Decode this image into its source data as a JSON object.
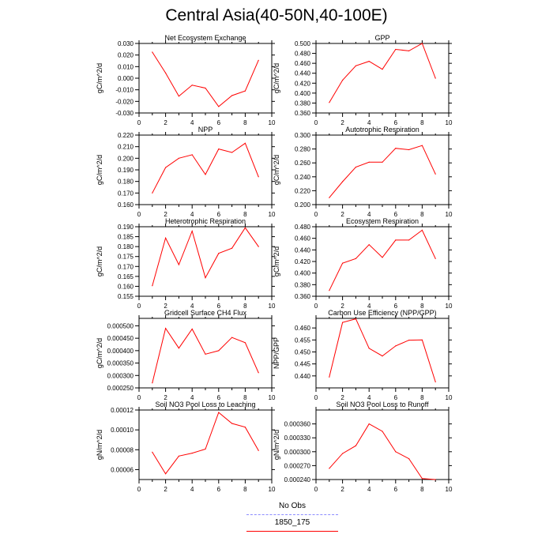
{
  "page": {
    "title": "Central Asia(40-50N,40-100E)"
  },
  "legend": [
    {
      "label": "No Obs",
      "color": "#8c8cff",
      "dash": true
    },
    {
      "label": "1850_175",
      "color": "#ff0000",
      "dash": false
    }
  ],
  "chart_data": [
    {
      "type": "line",
      "title": "Net Ecosystem Exchange",
      "ylabel": "gC/m^2/d",
      "xlim": [
        0,
        10
      ],
      "ylim": [
        -0.03,
        0.03
      ],
      "xticks": [
        "0",
        "2",
        "4",
        "6",
        "8",
        "10"
      ],
      "yticks": [
        "-0.030",
        "-0.020",
        "-0.010",
        "0.000",
        "0.010",
        "0.020",
        "0.030"
      ],
      "x": [
        1,
        2,
        3,
        4,
        5,
        6,
        7,
        8,
        9
      ],
      "series": [
        {
          "name": "1850_175",
          "values": [
            0.0225,
            0.0045,
            -0.0155,
            -0.006,
            -0.0085,
            -0.0245,
            -0.015,
            -0.011,
            0.0155
          ]
        }
      ]
    },
    {
      "type": "line",
      "title": "GPP",
      "ylabel": "gC/m^2/d",
      "xlim": [
        0,
        10
      ],
      "ylim": [
        0.36,
        0.5
      ],
      "xticks": [
        "0",
        "2",
        "4",
        "6",
        "8",
        "10"
      ],
      "yticks": [
        "0.360",
        "0.380",
        "0.400",
        "0.420",
        "0.440",
        "0.460",
        "0.480",
        "0.500"
      ],
      "x": [
        1,
        2,
        3,
        4,
        5,
        6,
        7,
        8,
        9
      ],
      "series": [
        {
          "name": "1850_175",
          "values": [
            0.381,
            0.426,
            0.455,
            0.464,
            0.448,
            0.488,
            0.485,
            0.5,
            0.43
          ]
        }
      ]
    },
    {
      "type": "line",
      "title": "NPP",
      "ylabel": "gC/m^2/d",
      "xlim": [
        0,
        10
      ],
      "ylim": [
        0.16,
        0.22
      ],
      "xticks": [
        "0",
        "2",
        "4",
        "6",
        "8",
        "10"
      ],
      "yticks": [
        "0.160",
        "0.170",
        "0.180",
        "0.190",
        "0.200",
        "0.210",
        "0.220"
      ],
      "x": [
        1,
        2,
        3,
        4,
        5,
        6,
        7,
        8,
        9
      ],
      "series": [
        {
          "name": "1850_175",
          "values": [
            0.17,
            0.192,
            0.2,
            0.203,
            0.186,
            0.208,
            0.205,
            0.213,
            0.184
          ]
        }
      ]
    },
    {
      "type": "line",
      "title": "Autotrophic Respiration",
      "ylabel": "gC/m^2/d",
      "xlim": [
        0,
        10
      ],
      "ylim": [
        0.2,
        0.3
      ],
      "xticks": [
        "0",
        "2",
        "4",
        "6",
        "8",
        "10"
      ],
      "yticks": [
        "0.200",
        "0.220",
        "0.240",
        "0.260",
        "0.280",
        "0.300"
      ],
      "x": [
        1,
        2,
        3,
        4,
        5,
        6,
        7,
        8,
        9
      ],
      "series": [
        {
          "name": "1850_175",
          "values": [
            0.21,
            0.233,
            0.254,
            0.261,
            0.261,
            0.281,
            0.279,
            0.285,
            0.244
          ]
        }
      ]
    },
    {
      "type": "line",
      "title": "Heterotrophic Respiration",
      "ylabel": "gC/m^2/d",
      "xlim": [
        0,
        10
      ],
      "ylim": [
        0.155,
        0.19
      ],
      "xticks": [
        "0",
        "2",
        "4",
        "6",
        "8",
        "10"
      ],
      "yticks": [
        "0.155",
        "0.160",
        "0.165",
        "0.170",
        "0.175",
        "0.180",
        "0.185",
        "0.190"
      ],
      "x": [
        1,
        2,
        3,
        4,
        5,
        6,
        7,
        8,
        9
      ],
      "series": [
        {
          "name": "1850_175",
          "values": [
            0.1603,
            0.1843,
            0.1709,
            0.1878,
            0.1643,
            0.1766,
            0.1792,
            0.1895,
            0.18
          ]
        }
      ]
    },
    {
      "type": "line",
      "title": "Ecosystem Respiration",
      "ylabel": "gC/m^2/d",
      "xlim": [
        0,
        10
      ],
      "ylim": [
        0.36,
        0.48
      ],
      "xticks": [
        "0",
        "2",
        "4",
        "6",
        "8",
        "10"
      ],
      "yticks": [
        "0.360",
        "0.380",
        "0.400",
        "0.420",
        "0.440",
        "0.460",
        "0.480"
      ],
      "x": [
        1,
        2,
        3,
        4,
        5,
        6,
        7,
        8,
        9
      ],
      "series": [
        {
          "name": "1850_175",
          "values": [
            0.37,
            0.417,
            0.425,
            0.449,
            0.427,
            0.457,
            0.457,
            0.474,
            0.425
          ]
        }
      ]
    },
    {
      "type": "line",
      "title": "Gridcell Surface CH4 Flux",
      "ylabel": "gC/m^2/d",
      "xlim": [
        0,
        10
      ],
      "ylim": [
        0.00025,
        0.00053
      ],
      "xticks": [
        "0",
        "2",
        "4",
        "6",
        "8",
        "10"
      ],
      "yticks": [
        "0.000250",
        "0.000300",
        "0.000350",
        "0.000400",
        "0.000450",
        "0.000500"
      ],
      "x": [
        1,
        2,
        3,
        4,
        5,
        6,
        7,
        8,
        9
      ],
      "series": [
        {
          "name": "1850_175",
          "values": [
            0.00027,
            0.00049,
            0.00041,
            0.000487,
            0.000386,
            0.0004,
            0.000453,
            0.000432,
            0.000311
          ]
        }
      ]
    },
    {
      "type": "line",
      "title": "Carbon Use Efficiency (NPP/GPP)",
      "ylabel": "NPP/GPP",
      "xlim": [
        0,
        10
      ],
      "ylim": [
        0.435,
        0.464
      ],
      "xticks": [
        "0",
        "2",
        "4",
        "6",
        "8",
        "10"
      ],
      "yticks": [
        "0.440",
        "0.445",
        "0.450",
        "0.455",
        "0.460"
      ],
      "x": [
        1,
        2,
        3,
        4,
        5,
        6,
        7,
        8,
        9
      ],
      "series": [
        {
          "name": "1850_175",
          "values": [
            0.4395,
            0.4623,
            0.4638,
            0.4515,
            0.4483,
            0.4525,
            0.4549,
            0.455,
            0.4375
          ]
        }
      ]
    },
    {
      "type": "line",
      "title": "Soil NO3 Pool Loss to Leaching",
      "ylabel": "gN/m^2/d",
      "xlim": [
        0,
        10
      ],
      "ylim": [
        5e-05,
        0.00012
      ],
      "xticks": [
        "0",
        "2",
        "4",
        "6",
        "8",
        "10"
      ],
      "yticks": [
        "0.00006",
        "0.00008",
        "0.00010",
        "0.00012"
      ],
      "x": [
        1,
        2,
        3,
        4,
        5,
        6,
        7,
        8,
        9
      ],
      "series": [
        {
          "name": "1850_175",
          "values": [
            7.75e-05,
            5.58e-05,
            7.36e-05,
            7.66e-05,
            8.06e-05,
            0.0001175,
            0.0001065,
            0.0001027,
            7.92e-05
          ]
        }
      ]
    },
    {
      "type": "line",
      "title": "Soil NO3 Pool Loss to Runoff",
      "ylabel": "gN/m^2/d",
      "xlim": [
        0,
        10
      ],
      "ylim": [
        0.00024,
        0.00039
      ],
      "xticks": [
        "0",
        "2",
        "4",
        "6",
        "8",
        "10"
      ],
      "yticks": [
        "0.000240",
        "0.000270",
        "0.000300",
        "0.000330",
        "0.000360"
      ],
      "x": [
        1,
        2,
        3,
        4,
        5,
        6,
        7,
        8,
        9
      ],
      "series": [
        {
          "name": "1850_175",
          "values": [
            0.000264,
            0.000296,
            0.000313,
            0.00036,
            0.000344,
            0.0003,
            0.000285,
            0.000242,
            0.00024
          ]
        }
      ]
    }
  ]
}
